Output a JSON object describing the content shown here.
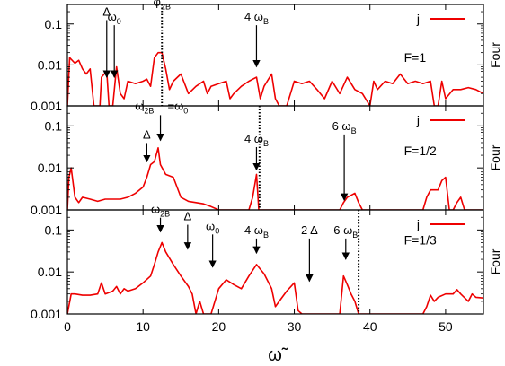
{
  "chart_data": [
    {
      "type": "line",
      "xlim": [
        0,
        55
      ],
      "ylim": [
        0.001,
        0.3
      ],
      "yscale": "log",
      "y_ticks": [
        {
          "value": 0.001,
          "label": "0.001"
        },
        {
          "value": 0.01,
          "label": "0.01"
        },
        {
          "value": 0.1,
          "label": "0.1"
        }
      ],
      "ylabel": "Four",
      "legend": {
        "label": "j",
        "color": "#ee0000",
        "position": "top-right"
      },
      "text_label": {
        "text": "F=1",
        "x": 44.5,
        "y": 0.012
      },
      "vline": {
        "x": 12.5
      },
      "annotations": [
        {
          "main": "Δ",
          "sub": "",
          "x": 5.2,
          "tip_y": 0.005,
          "text_y": 0.16,
          "arrow": true
        },
        {
          "main": "ω",
          "sub": "0",
          "x": 6.2,
          "tip_y": 0.005,
          "text_y": 0.12,
          "arrow": true
        },
        {
          "main": "φ",
          "sub": "2B",
          "x": 12.5,
          "tip_y": 0.28,
          "text_y": 0.28,
          "arrow": false
        },
        {
          "main": "4 ω",
          "sub": "B",
          "x": 25.0,
          "tip_y": 0.009,
          "text_y": 0.12,
          "arrow": true
        }
      ],
      "series": [
        {
          "name": "j",
          "color": "#ee0000",
          "points": [
            [
              0,
              0.001
            ],
            [
              0.3,
              0.015
            ],
            [
              1,
              0.011
            ],
            [
              1.5,
              0.013
            ],
            [
              2,
              0.008
            ],
            [
              2.5,
              0.006
            ],
            [
              3,
              0.008
            ],
            [
              3.5,
              0.001
            ],
            [
              4.3,
              0.001
            ],
            [
              4.5,
              0.005
            ],
            [
              5.2,
              0.007
            ],
            [
              5.5,
              0.001
            ],
            [
              6,
              0.001
            ],
            [
              6.5,
              0.009
            ],
            [
              7,
              0.002
            ],
            [
              7.5,
              0.0015
            ],
            [
              8,
              0.004
            ],
            [
              9,
              0.0035
            ],
            [
              10,
              0.004
            ],
            [
              10.5,
              0.0045
            ],
            [
              11,
              0.003
            ],
            [
              11.5,
              0.015
            ],
            [
              12,
              0.02
            ],
            [
              12.5,
              0.02
            ],
            [
              13,
              0.008
            ],
            [
              13.5,
              0.0025
            ],
            [
              14,
              0.004
            ],
            [
              15,
              0.006
            ],
            [
              16,
              0.002
            ],
            [
              17,
              0.003
            ],
            [
              18,
              0.004
            ],
            [
              18.5,
              0.002
            ],
            [
              19,
              0.003
            ],
            [
              20,
              0.0035
            ],
            [
              21,
              0.004
            ],
            [
              21.5,
              0.0015
            ],
            [
              22,
              0.002
            ],
            [
              23,
              0.003
            ],
            [
              24,
              0.004
            ],
            [
              25,
              0.005
            ],
            [
              25.5,
              0.0015
            ],
            [
              26,
              0.003
            ],
            [
              27,
              0.006
            ],
            [
              27.5,
              0.0015
            ],
            [
              28,
              0.001
            ],
            [
              29,
              0.001
            ],
            [
              29.5,
              0.002
            ],
            [
              30,
              0.004
            ],
            [
              31,
              0.0035
            ],
            [
              32,
              0.004
            ],
            [
              33,
              0.0025
            ],
            [
              34,
              0.0015
            ],
            [
              35,
              0.004
            ],
            [
              36,
              0.002
            ],
            [
              37,
              0.005
            ],
            [
              38,
              0.0025
            ],
            [
              39,
              0.002
            ],
            [
              40,
              0.001
            ],
            [
              40.5,
              0.004
            ],
            [
              41,
              0.0025
            ],
            [
              42,
              0.004
            ],
            [
              43,
              0.0035
            ],
            [
              44,
              0.006
            ],
            [
              45,
              0.0035
            ],
            [
              46,
              0.004
            ],
            [
              47,
              0.0035
            ],
            [
              48,
              0.004
            ],
            [
              48.5,
              0.001
            ],
            [
              49,
              0.001
            ],
            [
              49.5,
              0.004
            ],
            [
              50,
              0.0015
            ],
            [
              51,
              0.0025
            ],
            [
              52,
              0.0025
            ],
            [
              53,
              0.0028
            ],
            [
              54,
              0.0025
            ],
            [
              55,
              0.002
            ]
          ]
        }
      ]
    },
    {
      "type": "line",
      "xlim": [
        0,
        55
      ],
      "ylim": [
        0.001,
        0.3
      ],
      "yscale": "log",
      "y_ticks": [
        {
          "value": 0.001,
          "label": "0.001"
        },
        {
          "value": 0.01,
          "label": "0.01"
        },
        {
          "value": 0.1,
          "label": "0.1"
        }
      ],
      "ylabel": "Four",
      "legend": {
        "label": "j",
        "color": "#ee0000",
        "position": "top-right"
      },
      "text_label": {
        "text": "F=1/2",
        "x": 44.5,
        "y": 0.02
      },
      "vline": {
        "x": 25.4
      },
      "annotations": [
        {
          "main": "ω",
          "sub": "2B",
          "x": 10.2,
          "tip_y": 0.24,
          "text_y": 0.24,
          "arrow": false
        },
        {
          "main": "=ω",
          "sub": "0",
          "x": 14.6,
          "tip_y": 0.24,
          "text_y": 0.24,
          "arrow": false
        },
        {
          "main": "Δ",
          "sub": "",
          "x": 10.5,
          "tip_y": 0.014,
          "text_y": 0.05,
          "arrow": true
        },
        {
          "main": "",
          "sub": "",
          "x": 12.3,
          "tip_y": 0.045,
          "text_y": 0.18,
          "arrow": true
        },
        {
          "main": "4 ω",
          "sub": "B",
          "x": 25.0,
          "tip_y": 0.009,
          "text_y": 0.04,
          "arrow": true
        },
        {
          "main": "6 ω",
          "sub": "B",
          "x": 36.6,
          "tip_y": 0.0017,
          "text_y": 0.08,
          "arrow": true
        }
      ],
      "series": [
        {
          "name": "j",
          "color": "#ee0000",
          "points": [
            [
              0,
              0.001
            ],
            [
              0.2,
              0.006
            ],
            [
              0.5,
              0.01
            ],
            [
              1,
              0.002
            ],
            [
              1.5,
              0.0015
            ],
            [
              2,
              0.002
            ],
            [
              3,
              0.0018
            ],
            [
              4,
              0.0016
            ],
            [
              5,
              0.0018
            ],
            [
              6,
              0.0018
            ],
            [
              7,
              0.0018
            ],
            [
              8,
              0.002
            ],
            [
              9,
              0.0025
            ],
            [
              10,
              0.0035
            ],
            [
              10.5,
              0.006
            ],
            [
              11,
              0.012
            ],
            [
              11.5,
              0.014
            ],
            [
              12,
              0.03
            ],
            [
              12.3,
              0.012
            ],
            [
              13,
              0.007
            ],
            [
              14,
              0.006
            ],
            [
              15,
              0.002
            ],
            [
              16,
              0.0016
            ],
            [
              17,
              0.0015
            ],
            [
              18,
              0.0014
            ],
            [
              19,
              0.0012
            ],
            [
              20,
              0.001
            ],
            [
              21,
              0.001
            ],
            [
              22,
              0.001
            ],
            [
              23,
              0.001
            ],
            [
              24,
              0.001
            ],
            [
              24.5,
              0.002
            ],
            [
              25,
              0.007
            ],
            [
              25.3,
              0.001
            ],
            [
              26,
              0.001
            ],
            [
              27,
              0.001
            ],
            [
              36,
              0.001
            ],
            [
              36.5,
              0.0015
            ],
            [
              37,
              0.002
            ],
            [
              38,
              0.0025
            ],
            [
              38.5,
              0.0015
            ],
            [
              39,
              0.001
            ],
            [
              47,
              0.001
            ],
            [
              47.5,
              0.002
            ],
            [
              48,
              0.003
            ],
            [
              49,
              0.003
            ],
            [
              49.5,
              0.005
            ],
            [
              50,
              0.006
            ],
            [
              50.5,
              0.001
            ],
            [
              51,
              0.001
            ],
            [
              51.5,
              0.0015
            ],
            [
              52,
              0.002
            ],
            [
              52.5,
              0.001
            ],
            [
              55,
              0.001
            ]
          ]
        }
      ]
    },
    {
      "type": "line",
      "xlim": [
        0,
        55
      ],
      "ylim": [
        0.001,
        0.3
      ],
      "yscale": "log",
      "y_ticks": [
        {
          "value": 0.001,
          "label": "0.001"
        },
        {
          "value": 0.01,
          "label": "0.01"
        },
        {
          "value": 0.1,
          "label": "0.1"
        }
      ],
      "ylabel": "Four",
      "legend": {
        "label": "j",
        "color": "#ee0000",
        "position": "top-right"
      },
      "text_label": {
        "text": "F=1/3",
        "x": 44.5,
        "y": 0.045
      },
      "vline": {
        "x": 38.5
      },
      "annotations": [
        {
          "main": "ω",
          "sub": "2B",
          "x": 12.3,
          "tip_y": 0.09,
          "text_y": 0.25,
          "arrow": true
        },
        {
          "main": "Δ",
          "sub": "",
          "x": 15.9,
          "tip_y": 0.035,
          "text_y": 0.17,
          "arrow": true
        },
        {
          "main": "ω",
          "sub": "0",
          "x": 19.2,
          "tip_y": 0.013,
          "text_y": 0.1,
          "arrow": true
        },
        {
          "main": "4 ω",
          "sub": "B",
          "x": 25.0,
          "tip_y": 0.028,
          "text_y": 0.08,
          "arrow": true
        },
        {
          "main": "2 Δ",
          "sub": "",
          "x": 32.0,
          "tip_y": 0.006,
          "text_y": 0.08,
          "arrow": true
        },
        {
          "main": "6 ω",
          "sub": "B",
          "x": 36.8,
          "tip_y": 0.02,
          "text_y": 0.08,
          "arrow": true
        }
      ],
      "series": [
        {
          "name": "j",
          "color": "#ee0000",
          "points": [
            [
              0,
              0.001
            ],
            [
              0.5,
              0.003
            ],
            [
              1,
              0.003
            ],
            [
              2,
              0.0028
            ],
            [
              3,
              0.0028
            ],
            [
              4,
              0.003
            ],
            [
              4.5,
              0.0055
            ],
            [
              5,
              0.003
            ],
            [
              6,
              0.0035
            ],
            [
              6.5,
              0.0045
            ],
            [
              7,
              0.003
            ],
            [
              7.5,
              0.004
            ],
            [
              8,
              0.0035
            ],
            [
              9,
              0.004
            ],
            [
              10,
              0.0055
            ],
            [
              11,
              0.008
            ],
            [
              11.5,
              0.015
            ],
            [
              12,
              0.03
            ],
            [
              12.5,
              0.05
            ],
            [
              13,
              0.03
            ],
            [
              14,
              0.015
            ],
            [
              15,
              0.008
            ],
            [
              16,
              0.0045
            ],
            [
              16.5,
              0.003
            ],
            [
              17,
              0.001
            ],
            [
              17.5,
              0.002
            ],
            [
              18,
              0.001
            ],
            [
              19,
              0.001
            ],
            [
              20,
              0.004
            ],
            [
              21,
              0.0065
            ],
            [
              22,
              0.005
            ],
            [
              23,
              0.004
            ],
            [
              24,
              0.008
            ],
            [
              25,
              0.015
            ],
            [
              26,
              0.009
            ],
            [
              27,
              0.004
            ],
            [
              27.5,
              0.0015
            ],
            [
              28,
              0.002
            ],
            [
              29,
              0.0035
            ],
            [
              30,
              0.0055
            ],
            [
              30.5,
              0.0012
            ],
            [
              31,
              0.001
            ],
            [
              35,
              0.001
            ],
            [
              36,
              0.001
            ],
            [
              36.5,
              0.008
            ],
            [
              37,
              0.005
            ],
            [
              37.5,
              0.003
            ],
            [
              38,
              0.002
            ],
            [
              38.5,
              0.001
            ],
            [
              47,
              0.001
            ],
            [
              47.5,
              0.0015
            ],
            [
              48,
              0.0028
            ],
            [
              48.5,
              0.002
            ],
            [
              49,
              0.0025
            ],
            [
              50,
              0.003
            ],
            [
              51,
              0.003
            ],
            [
              51.5,
              0.0038
            ],
            [
              52,
              0.003
            ],
            [
              53,
              0.002
            ],
            [
              53.5,
              0.003
            ],
            [
              54,
              0.0025
            ],
            [
              55,
              0.0024
            ]
          ]
        }
      ]
    }
  ],
  "x_axis": {
    "label": "ω̃",
    "ticks": [
      {
        "value": 0,
        "label": "0"
      },
      {
        "value": 10,
        "label": "10"
      },
      {
        "value": 20,
        "label": "20"
      },
      {
        "value": 30,
        "label": "30"
      },
      {
        "value": 40,
        "label": "40"
      },
      {
        "value": 50,
        "label": "50"
      }
    ]
  }
}
